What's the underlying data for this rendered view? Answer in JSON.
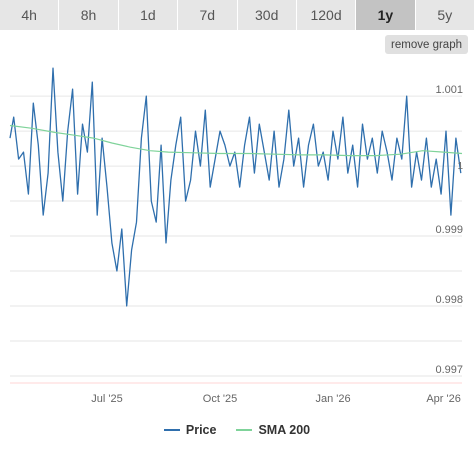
{
  "tabs": [
    {
      "label": "4h",
      "active": false
    },
    {
      "label": "8h",
      "active": false
    },
    {
      "label": "1d",
      "active": false
    },
    {
      "label": "7d",
      "active": false
    },
    {
      "label": "30d",
      "active": false
    },
    {
      "label": "120d",
      "active": false
    },
    {
      "label": "1y",
      "active": true
    },
    {
      "label": "5y",
      "active": false
    }
  ],
  "remove_graph_label": "remove graph",
  "colors": {
    "price": "#2f6fad",
    "sma": "#7fd39a",
    "grid": "#e6e6e6"
  },
  "chart_data": {
    "type": "line",
    "title": "",
    "xlabel": "",
    "ylabel": "",
    "ylim": [
      0.9969,
      1.00143
    ],
    "y_ticks": [
      1.001,
      0.999,
      0.998,
      0.997
    ],
    "y_tick_labels": [
      "1.001",
      "0.999",
      "0.998",
      "0.997"
    ],
    "x_range": [
      "2025-04-13",
      "2026-04-16"
    ],
    "x_ticks": [
      "2025-07-01",
      "2025-10-01",
      "2026-01-01",
      "2026-04-01"
    ],
    "x_tick_labels": [
      "Jul '25",
      "Oct '25",
      "Jan '26",
      "Apr '26"
    ],
    "current_value_label": "1",
    "series": [
      {
        "name": "Price",
        "dates": [
          "2025-04-13",
          "2025-04-16",
          "2025-04-20",
          "2025-04-24",
          "2025-04-28",
          "2025-05-02",
          "2025-05-06",
          "2025-05-10",
          "2025-05-14",
          "2025-05-18",
          "2025-05-22",
          "2025-05-26",
          "2025-05-30",
          "2025-06-03",
          "2025-06-07",
          "2025-06-11",
          "2025-06-15",
          "2025-06-19",
          "2025-06-23",
          "2025-06-27",
          "2025-07-01",
          "2025-07-05",
          "2025-07-09",
          "2025-07-13",
          "2025-07-17",
          "2025-07-21",
          "2025-07-25",
          "2025-07-29",
          "2025-08-02",
          "2025-08-06",
          "2025-08-10",
          "2025-08-14",
          "2025-08-18",
          "2025-08-22",
          "2025-08-26",
          "2025-08-30",
          "2025-09-03",
          "2025-09-07",
          "2025-09-11",
          "2025-09-15",
          "2025-09-19",
          "2025-09-23",
          "2025-09-27",
          "2025-10-01",
          "2025-10-05",
          "2025-10-09",
          "2025-10-13",
          "2025-10-17",
          "2025-10-21",
          "2025-10-25",
          "2025-10-29",
          "2025-11-02",
          "2025-11-06",
          "2025-11-10",
          "2025-11-14",
          "2025-11-18",
          "2025-11-22",
          "2025-11-26",
          "2025-11-30",
          "2025-12-04",
          "2025-12-08",
          "2025-12-12",
          "2025-12-16",
          "2025-12-20",
          "2025-12-24",
          "2025-12-28",
          "2026-01-01",
          "2026-01-05",
          "2026-01-09",
          "2026-01-13",
          "2026-01-17",
          "2026-01-21",
          "2026-01-25",
          "2026-01-29",
          "2026-02-02",
          "2026-02-06",
          "2026-02-10",
          "2026-02-14",
          "2026-02-18",
          "2026-02-22",
          "2026-02-26",
          "2026-03-02",
          "2026-03-06",
          "2026-03-10",
          "2026-03-14",
          "2026-03-18",
          "2026-03-22",
          "2026-03-26",
          "2026-03-30",
          "2026-04-03",
          "2026-04-07",
          "2026-04-11",
          "2026-04-15"
        ],
        "values": [
          1.0004,
          1.0007,
          1.0001,
          1.0002,
          0.9996,
          1.0009,
          1.0003,
          0.9993,
          0.9999,
          1.0014,
          1.0002,
          0.9995,
          1.0005,
          1.0011,
          0.9996,
          1.0006,
          1.0002,
          1.0012,
          0.9993,
          1.0004,
          0.9997,
          0.9989,
          0.9985,
          0.9991,
          0.998,
          0.9988,
          0.9992,
          1.0004,
          1.001,
          0.9995,
          0.9992,
          1.0003,
          0.9989,
          0.9998,
          1.0003,
          1.0007,
          0.9995,
          0.9998,
          1.0005,
          1.0,
          1.0008,
          0.9997,
          1.0001,
          1.0005,
          1.0003,
          1.0,
          1.0002,
          0.9997,
          1.0003,
          1.0007,
          0.9999,
          1.0006,
          1.0002,
          0.9998,
          1.0005,
          0.9997,
          1.0001,
          1.0008,
          1.0,
          1.0004,
          0.9997,
          1.0003,
          1.0006,
          1.0,
          1.0002,
          0.9998,
          1.0005,
          1.0001,
          1.0007,
          0.9999,
          1.0003,
          0.9997,
          1.0006,
          1.0001,
          1.0004,
          0.9999,
          1.0005,
          1.0002,
          0.9998,
          1.0004,
          1.0001,
          1.001,
          0.9997,
          1.0002,
          0.9998,
          1.0004,
          0.9997,
          1.0001,
          0.9996,
          1.0005,
          0.9993,
          1.0004,
          0.9999
        ]
      },
      {
        "name": "SMA 200",
        "dates": [
          "2025-04-13",
          "2025-05-01",
          "2025-05-20",
          "2025-06-05",
          "2025-06-20",
          "2025-07-05",
          "2025-07-20",
          "2025-08-05",
          "2025-08-20",
          "2025-09-10",
          "2025-10-01",
          "2025-10-25",
          "2025-11-15",
          "2025-12-05",
          "2025-12-25",
          "2026-01-15",
          "2026-02-05",
          "2026-02-25",
          "2026-03-15",
          "2026-04-01",
          "2026-04-16"
        ],
        "values": [
          1.00058,
          1.00054,
          1.00048,
          1.00044,
          1.0004,
          1.00033,
          1.00027,
          1.00022,
          1.0002,
          1.00019,
          1.00018,
          1.00018,
          1.00017,
          1.00016,
          1.00016,
          1.00015,
          1.00015,
          1.00017,
          1.00022,
          1.0002,
          1.00018
        ]
      }
    ]
  }
}
